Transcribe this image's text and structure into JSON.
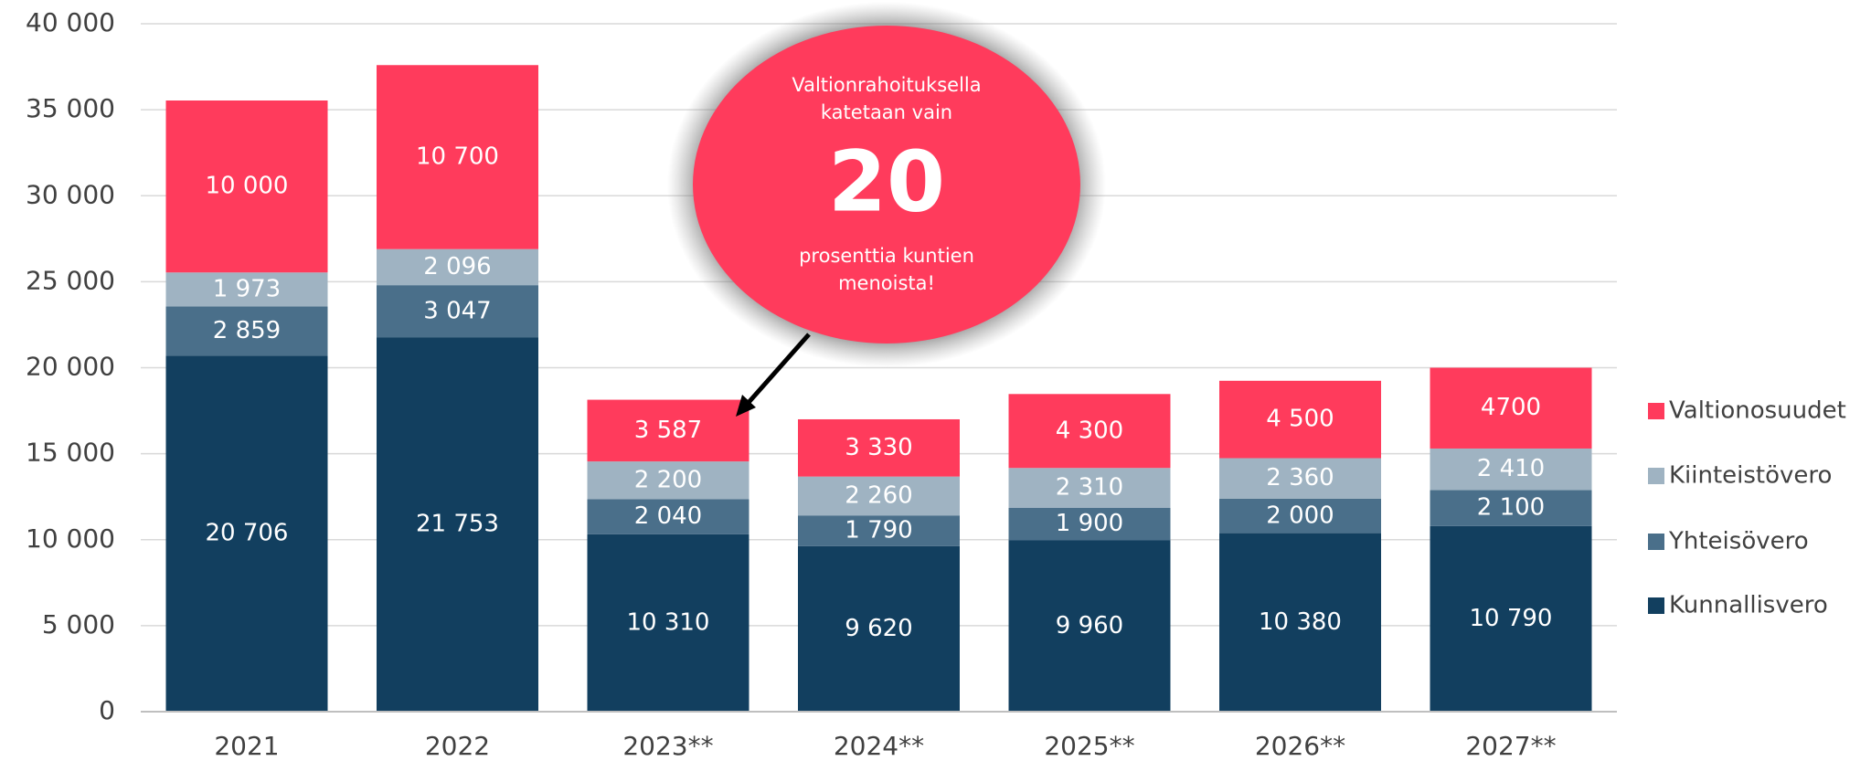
{
  "chart_data": {
    "type": "stacked_bar",
    "categories": [
      "2021",
      "2022",
      "2023**",
      "2024**",
      "2025**",
      "2026**",
      "2027**"
    ],
    "series": [
      {
        "name": "Kunnallisvero",
        "color": "#123f5f",
        "values": [
          20706,
          21753,
          10310,
          9620,
          9960,
          10380,
          10790
        ],
        "value_labels": [
          "20 706",
          "21 753",
          "10 310",
          "9 620",
          "9 960",
          "10 380",
          "10 790"
        ]
      },
      {
        "name": "Yhteisövero",
        "color": "#4a6f8a",
        "values": [
          2859,
          3047,
          2040,
          1790,
          1900,
          2000,
          2100
        ],
        "value_labels": [
          "2 859",
          "3 047",
          "2 040",
          "1 790",
          "1 900",
          "2 000",
          "2 100"
        ]
      },
      {
        "name": "Kiinteistövero",
        "color": "#9fb3c2",
        "values": [
          1973,
          2096,
          2200,
          2260,
          2310,
          2360,
          2410
        ],
        "value_labels": [
          "1 973",
          "2 096",
          "2 200",
          "2 260",
          "2 310",
          "2 360",
          "2 410"
        ]
      },
      {
        "name": "Valtionosuudet",
        "color": "#ff3b5c",
        "values": [
          10000,
          10700,
          3587,
          3330,
          4300,
          4500,
          4700
        ],
        "value_labels": [
          "10 000",
          "10 700",
          "3 587",
          "3 330",
          "4 300",
          "4 500",
          "4700"
        ]
      }
    ],
    "ylim": [
      0,
      40000
    ],
    "yticks": [
      0,
      {
        "value": 5000,
        "label": "5 000"
      },
      {
        "value": 10000,
        "label": "10 000"
      },
      {
        "value": 15000,
        "label": "15 000"
      },
      {
        "value": 20000,
        "label": "20 000"
      },
      {
        "value": 25000,
        "label": "25 000"
      },
      {
        "value": 30000,
        "label": "30 000"
      },
      {
        "value": 35000,
        "label": "35 000"
      },
      {
        "value": 40000,
        "label": "40 000"
      }
    ],
    "grid": true,
    "legend": "right",
    "annotation": {
      "lines_top": [
        "Valtionrahoituksella",
        "katetaan vain"
      ],
      "highlight": "20",
      "lines_bottom": [
        "prosenttia kuntien",
        "menoista!"
      ]
    }
  }
}
